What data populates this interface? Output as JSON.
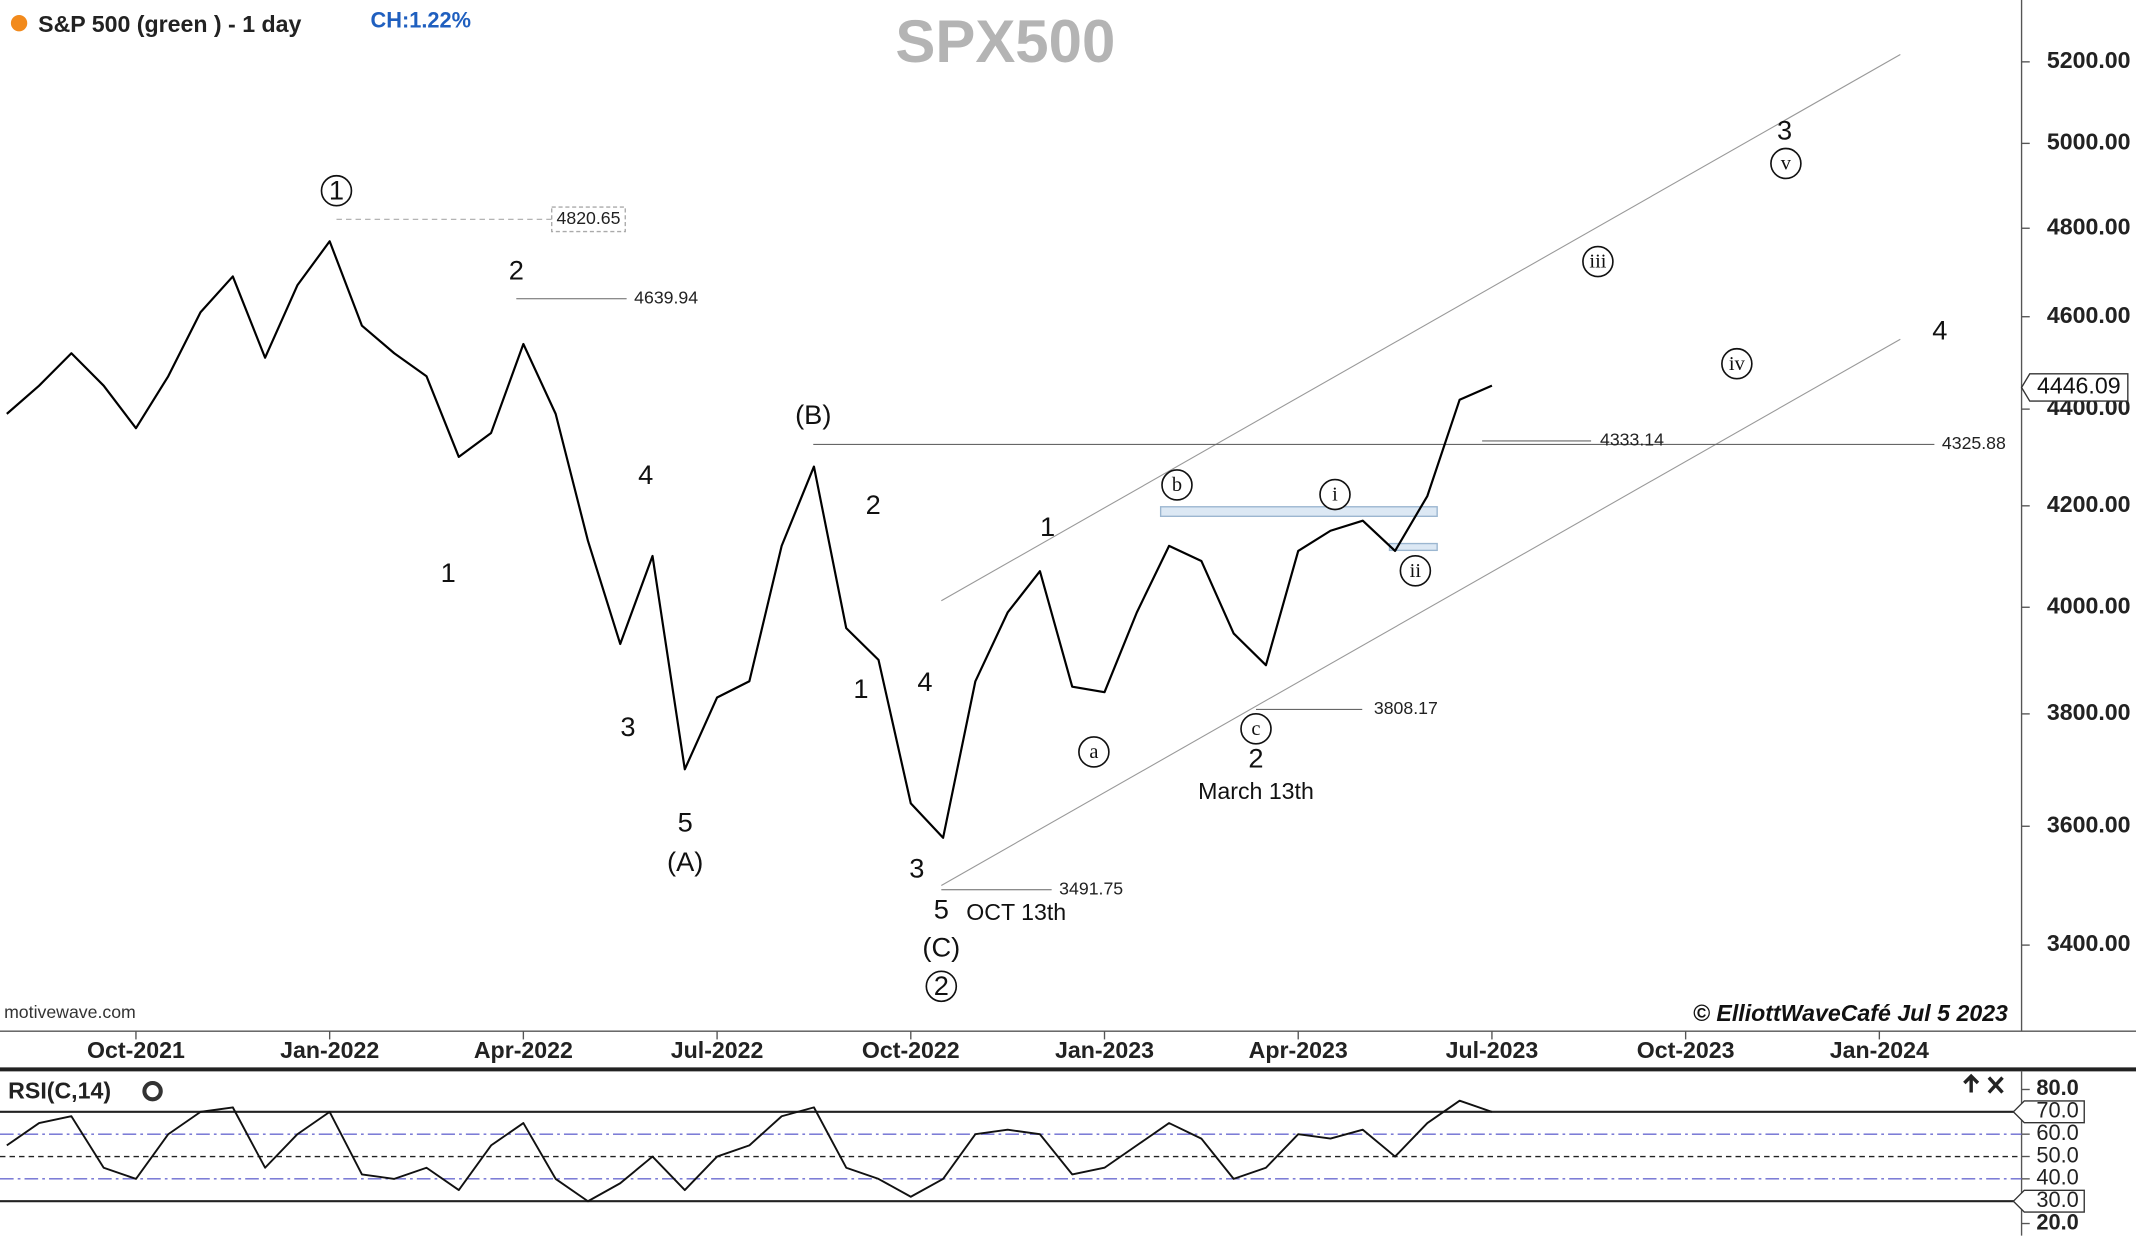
{
  "chart_data": [
    {
      "type": "line",
      "title": "SPX500",
      "subtitle": "S&P 500 (green ) - 1 day",
      "change": "CH:1.22%",
      "source": "motivewave.com",
      "credit": "© ElliottWaveCafé Jul 5 2023",
      "log_scale": true,
      "categories": [
        null,
        null,
        null,
        null,
        "Oct-2021",
        null,
        null,
        null,
        null,
        null,
        "Jan-2022",
        null,
        null,
        null,
        null,
        null,
        "Apr-2022",
        null,
        null,
        null,
        null,
        null,
        "Jul-2022",
        null,
        null,
        null,
        null,
        null,
        "Oct-2022",
        null,
        null,
        null,
        null,
        null,
        "Jan-2023",
        null,
        null,
        null,
        null,
        null,
        "Apr-2023",
        null,
        null,
        null,
        null,
        null,
        "Jul-2023",
        null,
        null,
        null,
        null,
        null,
        "Oct-2023",
        null,
        null,
        null,
        null,
        null,
        "Jan-2024",
        null,
        null,
        null,
        null
      ],
      "series": [
        {
          "color": "#000000",
          "values": [
            4390,
            4450,
            4520,
            4450,
            4360,
            4470,
            4610,
            4690,
            4510,
            4670,
            4770,
            4580,
            4520,
            4470,
            4300,
            4350,
            4540,
            4390,
            4130,
            3930,
            4100,
            3700,
            3830,
            3860,
            4120,
            4280,
            3960,
            3900,
            3640,
            3580,
            3860,
            3990,
            4070,
            3850,
            3840,
            3990,
            4120,
            4090,
            3950,
            3890,
            4110,
            4150,
            4170,
            4110,
            4220,
            4420,
            4450,
            null,
            null,
            null,
            null,
            null,
            null,
            null,
            null,
            null,
            null,
            null,
            null,
            null,
            null,
            null,
            null
          ]
        }
      ],
      "ylim": [
        3262,
        5357
      ],
      "yticks": [
        {
          "value": 3400,
          "label": "3400.00"
        },
        {
          "value": 3600,
          "label": "3600.00"
        },
        {
          "value": 3800,
          "label": "3800.00"
        },
        {
          "value": 4000,
          "label": "4000.00"
        },
        {
          "value": 4200,
          "label": "4200.00"
        },
        {
          "value": 4400,
          "label": "4400.00"
        },
        {
          "value": 4600,
          "label": "4600.00"
        },
        {
          "value": 4800,
          "label": "4800.00"
        },
        {
          "value": 5000,
          "label": "5000.00"
        },
        {
          "value": 5200,
          "label": "5200.00"
        }
      ],
      "levels": [
        4820.65,
        4639.94,
        4325.88,
        4333.14,
        3808.17,
        3491.75
      ],
      "last_value": 4446.09,
      "annotations": [
        {
          "text": "1",
          "circled": true
        },
        {
          "text": "2"
        },
        {
          "text": "1"
        },
        {
          "text": "3"
        },
        {
          "text": "4"
        },
        {
          "text": "5"
        },
        {
          "text": "(A)"
        },
        {
          "text": "(B)"
        },
        {
          "text": "2"
        },
        {
          "text": "1"
        },
        {
          "text": "4"
        },
        {
          "text": "3"
        },
        {
          "text": "5"
        },
        {
          "text": "OCT 13th"
        },
        {
          "text": "(C)"
        },
        {
          "text": "2",
          "circled": true
        },
        {
          "text": "1"
        },
        {
          "text": "a",
          "circled": true
        },
        {
          "text": "b",
          "circled": true
        },
        {
          "text": "c",
          "circled": true
        },
        {
          "text": "2"
        },
        {
          "text": "March 13th"
        },
        {
          "text": "i",
          "circled": true
        },
        {
          "text": "ii",
          "circled": true
        },
        {
          "text": "iii",
          "circled": true
        },
        {
          "text": "iv",
          "circled": true
        },
        {
          "text": "v",
          "circled": true
        },
        {
          "text": "3"
        },
        {
          "text": "4"
        }
      ]
    },
    {
      "type": "line",
      "title": "RSI(C,14)",
      "color": "#111111",
      "values": [
        55,
        65,
        68,
        45,
        40,
        60,
        70,
        72,
        45,
        60,
        70,
        42,
        40,
        45,
        35,
        55,
        65,
        40,
        30,
        38,
        50,
        35,
        50,
        55,
        68,
        72,
        45,
        40,
        32,
        40,
        60,
        62,
        60,
        42,
        45,
        55,
        65,
        58,
        40,
        45,
        60,
        58,
        62,
        50,
        65,
        75,
        70,
        null,
        null,
        null,
        null,
        null,
        null,
        null,
        null,
        null,
        null,
        null,
        null,
        null,
        null,
        null,
        null
      ],
      "ylim": [
        14,
        89
      ],
      "yticks": [
        {
          "value": 20,
          "label": "20.0"
        },
        {
          "value": 30,
          "label": "30.0"
        },
        {
          "value": 40,
          "label": "40.0"
        },
        {
          "value": 50,
          "label": "50.0"
        },
        {
          "value": 60,
          "label": "60.0"
        },
        {
          "value": 70,
          "label": "70.0"
        },
        {
          "value": 80,
          "label": "80.0"
        }
      ]
    }
  ]
}
